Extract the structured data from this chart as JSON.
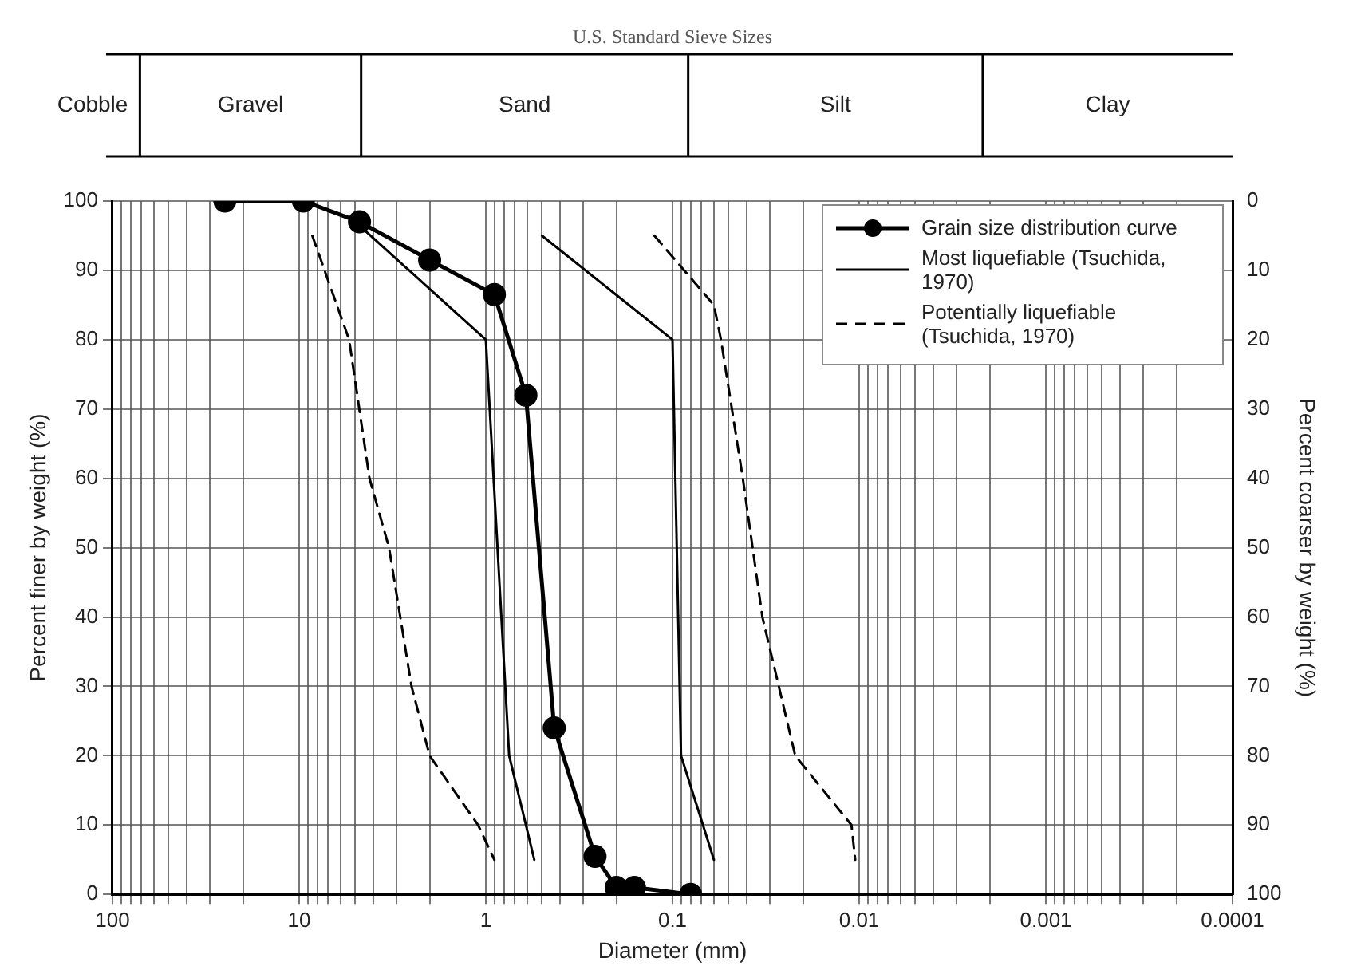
{
  "chart_data": {
    "type": "line",
    "xlabel": "Diameter (mm)",
    "ylabel": "Percent finer by weight (%)",
    "y2label": "Percent coarser by weight (%)",
    "annotations": [
      "U.S. Standard Sieve Sizes",
      "Cobble",
      "Gravel",
      "Sand",
      "Silt",
      "Clay"
    ],
    "series": [
      {
        "name": "Grain size distribution curve",
        "color": "#000000",
        "marker": "circle",
        "line_style": "solid",
        "x": [
          25,
          9.5,
          4.75,
          2,
          0.9,
          0.61,
          0.43,
          0.26,
          0.2,
          0.16,
          0.08
        ],
        "values": [
          100,
          100,
          97,
          91.5,
          86.5,
          72,
          24,
          5.5,
          1,
          1,
          0
        ]
      },
      {
        "name": "Most liquefiable (Tsuchida, 1970)",
        "color": "#000000",
        "marker": "none",
        "line_style": "solid",
        "x": [
          5,
          1,
          0.75,
          0.55
        ],
        "values": [
          97,
          80,
          20,
          5
        ]
      },
      {
        "color": "#000000",
        "marker": "none",
        "line_style": "solid",
        "x": [
          0.5,
          0.1,
          0.09,
          0.06
        ],
        "values": [
          95,
          80,
          20,
          5
        ]
      },
      {
        "name": "Potentially liquefiable (Tsuchida, 1970)",
        "color": "#000000",
        "marker": "none",
        "line_style": "dashed",
        "x": [
          8.5,
          5.4,
          4.2,
          3.3,
          2.5,
          2,
          1.1,
          0.9
        ],
        "values": [
          95,
          80,
          60,
          50,
          30,
          20,
          10,
          5
        ]
      },
      {
        "color": "#000000",
        "marker": "none",
        "line_style": "dashed",
        "x": [
          0.125,
          0.06,
          0.055,
          0.042,
          0.033,
          0.022,
          0.011,
          0.0105
        ],
        "values": [
          95,
          85,
          80,
          60,
          40,
          20,
          10,
          5
        ]
      }
    ],
    "xlim": [
      100,
      0.0001
    ],
    "xticks": [
      100,
      {
        "value": 90,
        "label": null
      },
      {
        "value": 80,
        "label": null
      },
      {
        "value": 70,
        "label": null
      },
      {
        "value": 60,
        "label": null
      },
      {
        "value": 50,
        "label": null
      },
      {
        "value": 40,
        "label": null
      },
      {
        "value": 30,
        "label": null
      },
      {
        "value": 20,
        "label": null
      },
      10,
      {
        "value": 9,
        "label": null
      },
      {
        "value": 8,
        "label": null
      },
      {
        "value": 7,
        "label": null
      },
      {
        "value": 6,
        "label": null
      },
      {
        "value": 5,
        "label": null
      },
      {
        "value": 4,
        "label": null
      },
      {
        "value": 3,
        "label": null
      },
      {
        "value": 2,
        "label": null
      },
      1,
      {
        "value": 0.9,
        "label": null
      },
      {
        "value": 0.8,
        "label": null
      },
      {
        "value": 0.7,
        "label": null
      },
      {
        "value": 0.6,
        "label": null
      },
      {
        "value": 0.5,
        "label": null
      },
      {
        "value": 0.4,
        "label": null
      },
      {
        "value": 0.3,
        "label": null
      },
      {
        "value": 0.2,
        "label": null
      },
      0.1,
      {
        "value": 0.09,
        "label": null
      },
      {
        "value": 0.08,
        "label": null
      },
      {
        "value": 0.07,
        "label": null
      },
      {
        "value": 0.06,
        "label": null
      },
      {
        "value": 0.05,
        "label": null
      },
      {
        "value": 0.04,
        "label": null
      },
      {
        "value": 0.03,
        "label": null
      },
      {
        "value": 0.02,
        "label": null
      },
      0.01,
      {
        "value": 0.009,
        "label": null
      },
      {
        "value": 0.008,
        "label": null
      },
      {
        "value": 0.007,
        "label": null
      },
      {
        "value": 0.006,
        "label": null
      },
      {
        "value": 0.005,
        "label": null
      },
      {
        "value": 0.004,
        "label": null
      },
      {
        "value": 0.003,
        "label": null
      },
      {
        "value": 0.002,
        "label": null
      },
      0.001,
      {
        "value": 0.0009,
        "label": null
      },
      {
        "value": 0.0008,
        "label": null
      },
      {
        "value": 0.0007,
        "label": null
      },
      {
        "value": 0.0006,
        "label": null
      },
      {
        "value": 0.0005,
        "label": null
      },
      {
        "value": 0.0004,
        "label": null
      },
      {
        "value": 0.0003,
        "label": null
      },
      {
        "value": 0.0002,
        "label": null
      },
      0.0001
    ],
    "ylim": [
      0,
      100
    ],
    "yticks": [
      0,
      10,
      20,
      30,
      40,
      50,
      60,
      70,
      80,
      90,
      100
    ],
    "y2lim": [
      100,
      0
    ],
    "y2ticks": [
      0,
      10,
      20,
      30,
      40,
      50,
      60,
      70,
      80,
      90,
      100
    ],
    "grid": true,
    "log": "x",
    "legend": "top right"
  }
}
